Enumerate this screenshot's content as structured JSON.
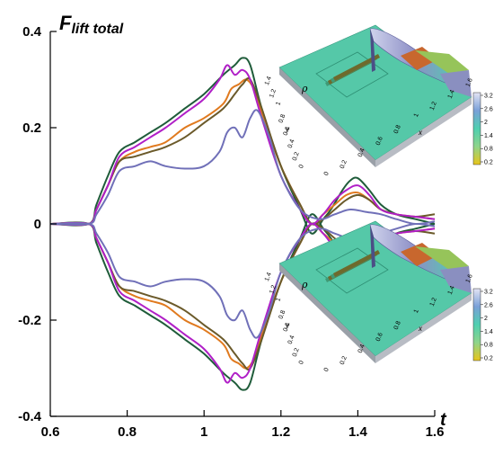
{
  "chart_data": {
    "type": "line",
    "title": "F",
    "title_subscript": "lift total",
    "xlabel": "t",
    "ylabel": "",
    "xlim": [
      0.6,
      1.6
    ],
    "ylim": [
      -0.4,
      0.4
    ],
    "x_ticks": [
      "0.6",
      "0.8",
      "1",
      "1.2",
      "1.4",
      "1.6"
    ],
    "y_ticks": [
      "0.4",
      "0.2",
      "0",
      "-0.2",
      "-0.4"
    ],
    "grid": false,
    "legend": "none",
    "series": [
      {
        "color": "#1f5c3a",
        "x": [
          0.6,
          0.7,
          0.72,
          0.75,
          0.78,
          0.82,
          0.86,
          0.9,
          0.95,
          1.0,
          1.05,
          1.08,
          1.1,
          1.12,
          1.15,
          1.2,
          1.25,
          1.28,
          1.31,
          1.33,
          1.36,
          1.38,
          1.4,
          1.43,
          1.46,
          1.5,
          1.55,
          1.6
        ],
        "y": [
          0,
          0,
          0.04,
          0.1,
          0.15,
          0.17,
          0.19,
          0.21,
          0.24,
          0.27,
          0.31,
          0.33,
          0.345,
          0.33,
          0.24,
          0.12,
          0.03,
          -0.02,
          0.01,
          0.03,
          0.07,
          0.09,
          0.095,
          0.07,
          0.04,
          0.02,
          0.01,
          0.0
        ]
      },
      {
        "color": "#e07a1f",
        "x": [
          0.6,
          0.7,
          0.72,
          0.75,
          0.78,
          0.82,
          0.86,
          0.9,
          0.95,
          1.0,
          1.05,
          1.07,
          1.09,
          1.11,
          1.13,
          1.15,
          1.2,
          1.25,
          1.28,
          1.31,
          1.34,
          1.37,
          1.4,
          1.43,
          1.46,
          1.5,
          1.55,
          1.6
        ],
        "y": [
          0,
          0,
          0.03,
          0.08,
          0.13,
          0.15,
          0.16,
          0.17,
          0.2,
          0.22,
          0.25,
          0.28,
          0.29,
          0.3,
          0.28,
          0.23,
          0.12,
          0.04,
          0.0,
          0.02,
          0.04,
          0.06,
          0.065,
          0.05,
          0.03,
          0.02,
          0.015,
          0.01
        ]
      },
      {
        "color": "#6b5a2a",
        "x": [
          0.6,
          0.7,
          0.72,
          0.75,
          0.78,
          0.82,
          0.86,
          0.9,
          0.95,
          1.0,
          1.05,
          1.08,
          1.1,
          1.12,
          1.15,
          1.2,
          1.25,
          1.28,
          1.31,
          1.34,
          1.37,
          1.4,
          1.43,
          1.46,
          1.5,
          1.55,
          1.6
        ],
        "y": [
          0,
          0,
          0.03,
          0.08,
          0.13,
          0.14,
          0.15,
          0.16,
          0.18,
          0.21,
          0.24,
          0.27,
          0.29,
          0.3,
          0.24,
          0.12,
          0.04,
          0.0,
          0.01,
          0.03,
          0.05,
          0.06,
          0.05,
          0.03,
          0.02,
          0.015,
          0.02
        ]
      },
      {
        "color": "#b01fc7",
        "x": [
          0.6,
          0.7,
          0.72,
          0.75,
          0.78,
          0.82,
          0.86,
          0.9,
          0.95,
          1.0,
          1.04,
          1.06,
          1.08,
          1.1,
          1.12,
          1.15,
          1.2,
          1.25,
          1.28,
          1.31,
          1.34,
          1.37,
          1.4,
          1.43,
          1.46,
          1.5,
          1.55,
          1.6
        ],
        "y": [
          0,
          0,
          0.03,
          0.08,
          0.14,
          0.16,
          0.18,
          0.2,
          0.23,
          0.26,
          0.3,
          0.33,
          0.31,
          0.32,
          0.3,
          0.22,
          0.1,
          0.03,
          0.0,
          0.02,
          0.05,
          0.07,
          0.08,
          0.06,
          0.03,
          0.02,
          0.015,
          0.01
        ]
      },
      {
        "color": "#7070b8",
        "x": [
          0.6,
          0.7,
          0.72,
          0.75,
          0.78,
          0.82,
          0.86,
          0.9,
          0.95,
          1.0,
          1.04,
          1.06,
          1.08,
          1.1,
          1.12,
          1.14,
          1.17,
          1.2,
          1.25,
          1.3,
          1.34,
          1.38,
          1.42,
          1.46,
          1.5,
          1.55,
          1.6
        ],
        "y": [
          0,
          0,
          0.02,
          0.06,
          0.11,
          0.12,
          0.13,
          0.12,
          0.115,
          0.12,
          0.15,
          0.19,
          0.2,
          0.18,
          0.22,
          0.235,
          0.18,
          0.1,
          0.03,
          0.01,
          0.02,
          0.03,
          0.025,
          0.02,
          0.01,
          0.0,
          0.005
        ]
      }
    ],
    "mirror_about_zero": true,
    "insets": [
      {
        "label": "ρ",
        "x_axis": "x",
        "y_axis": "y",
        "x_ticks": [
          "0",
          "0.2",
          "0.4",
          "0.6",
          "0.8",
          "1",
          "1.2",
          "1.4",
          "1.6"
        ],
        "y_ticks": [
          "0",
          "0.2",
          "0.4",
          "0.6",
          "0.8",
          "1",
          "1.2",
          "1.4"
        ],
        "colorbar_ticks": [
          "3.2",
          "2.6",
          "2",
          "1.4",
          "0.8",
          "0.2"
        ]
      },
      {
        "label": "ρ",
        "x_axis": "x",
        "y_axis": "y",
        "x_ticks": [
          "0",
          "0.2",
          "0.4",
          "0.6",
          "0.8",
          "1",
          "1.2",
          "1.4",
          "1.6"
        ],
        "y_ticks": [
          "0",
          "0.2",
          "0.4",
          "0.6",
          "0.8",
          "1",
          "1.2",
          "1.4"
        ],
        "colorbar_ticks": [
          "3.2",
          "2.6",
          "2",
          "1.4",
          "0.8",
          "0.2"
        ]
      }
    ],
    "colors": {
      "colormap_low": "#e8c51a",
      "colormap_mid": "#4fcfb0",
      "colormap_high": "#d8d8f0",
      "floor": "#55c8a8"
    }
  }
}
